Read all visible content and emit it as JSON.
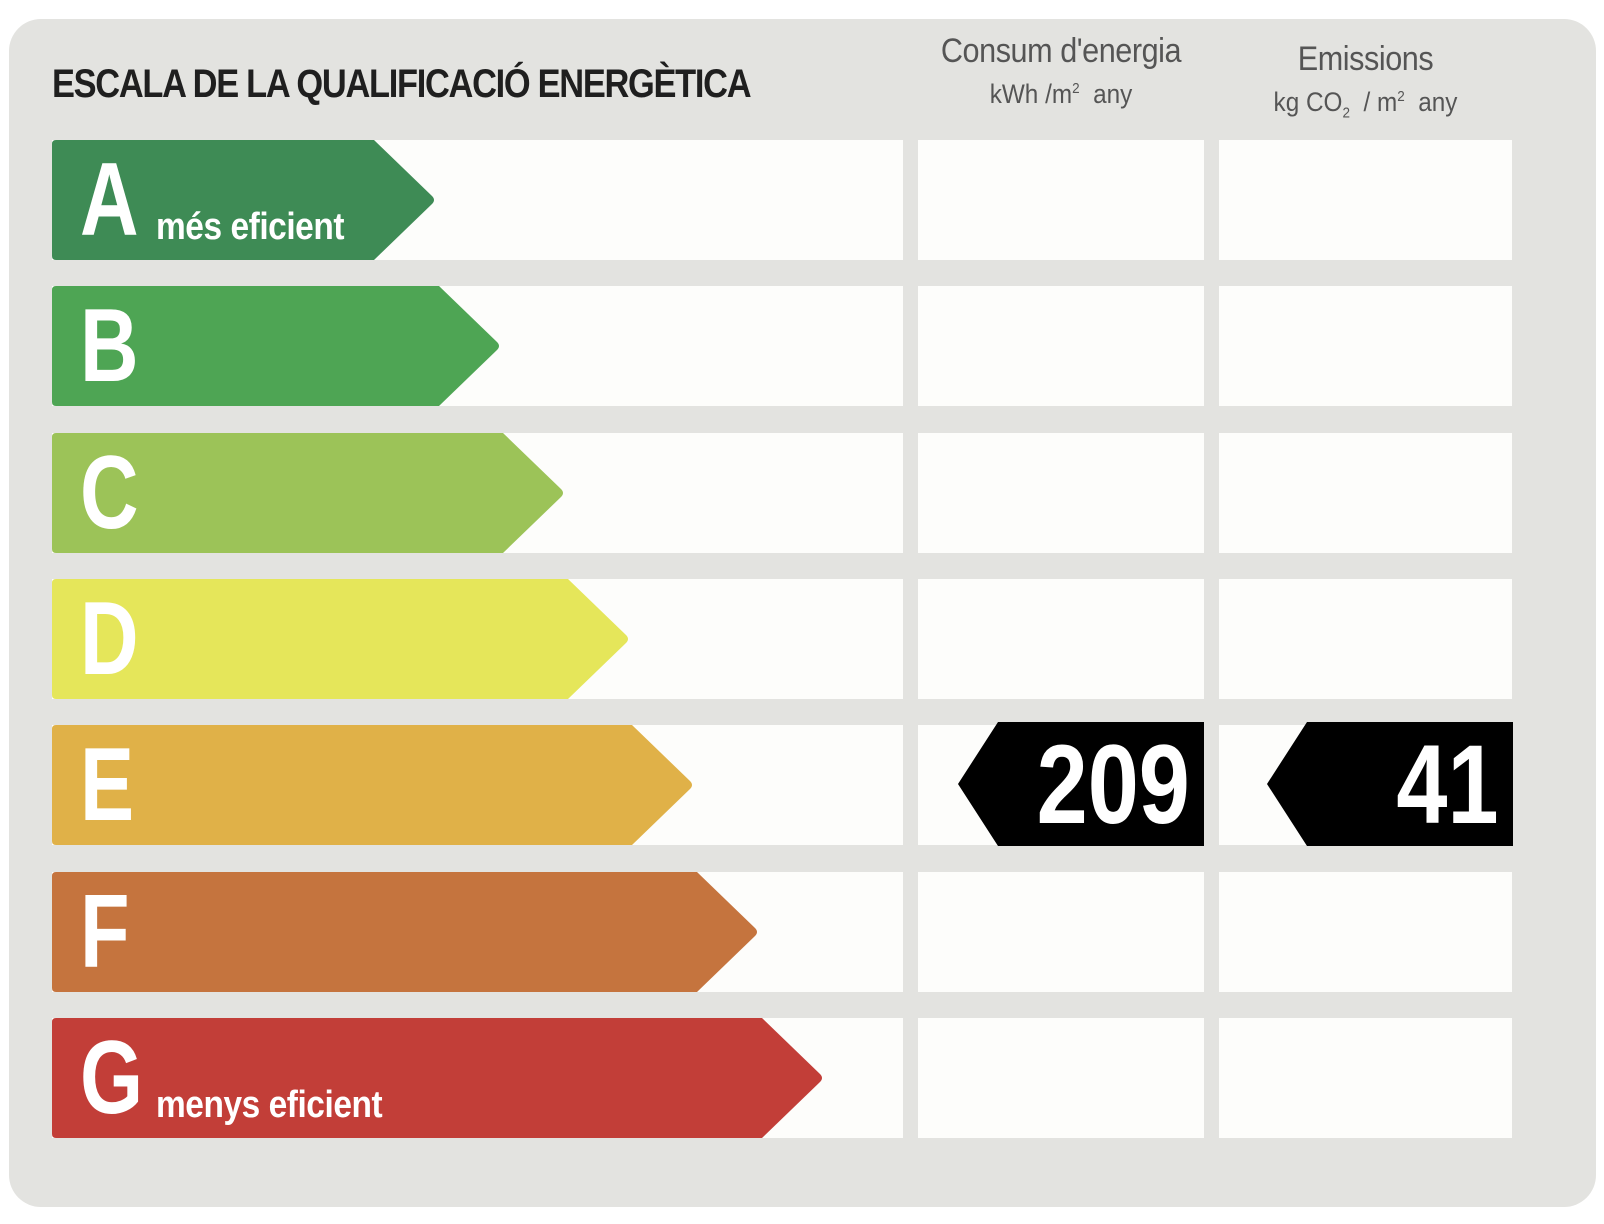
{
  "title": "ESCALA DE LA QUALIFICACIÓ ENERGÈTICA",
  "columns": {
    "energy": {
      "heading": "Consum d'energia",
      "unit_main": "kWh /m",
      "unit_sup": "2",
      "unit_tail": "any"
    },
    "emissions": {
      "heading": "Emissions",
      "unit_a": "kg CO",
      "unit_sub": "2",
      "unit_b": " / m",
      "unit_sup": "2",
      "unit_tail": "any"
    }
  },
  "grades": [
    {
      "letter": "A",
      "label": "més eficient",
      "color": "#3e8b55"
    },
    {
      "letter": "B",
      "label": "",
      "color": "#4ea554"
    },
    {
      "letter": "C",
      "label": "",
      "color": "#9cc358"
    },
    {
      "letter": "D",
      "label": "",
      "color": "#e5e65a"
    },
    {
      "letter": "E",
      "label": "",
      "color": "#e0b148"
    },
    {
      "letter": "F",
      "label": "",
      "color": "#c5743e"
    },
    {
      "letter": "G",
      "label": "menys eficient",
      "color": "#c23e38"
    }
  ],
  "rating": {
    "grade": "E",
    "energy_value": "209",
    "emissions_value": "41",
    "tag_color": "#000000"
  }
}
